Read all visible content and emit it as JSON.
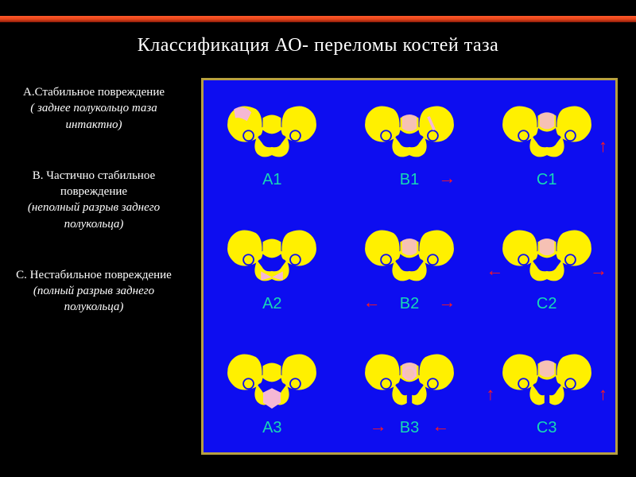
{
  "colors": {
    "background": "#000000",
    "accent_gradient_top": "#ff5a2c",
    "accent_gradient_bottom": "#8b1a0a",
    "diagram_bg": "#0d0df0",
    "diagram_border": "#b7a040",
    "pelvis_fill": "#fff000",
    "pelvis_highlight": "#f5b8d4",
    "arrow": "#ff1a1a",
    "label_a": "#17d7b5",
    "label_b": "#17d7b5",
    "label_c": "#17d7b5",
    "text": "#ffffff"
  },
  "title": "Классификация АО- переломы костей таза",
  "descriptions": [
    {
      "heading": "А.Стабильное повреждение",
      "sub": "( заднее полукольцо таза интактно)",
      "italic_heading": false
    },
    {
      "heading": "В. Частично стабильное повреждение",
      "sub": "(неполный разрыв заднего полукольца)",
      "italic_heading": false
    },
    {
      "heading": "С. Нестабильное повреждение",
      "sub": "(полный разрыв заднего полукольца)",
      "italic_heading": false
    }
  ],
  "grid": {
    "rows": 3,
    "cols": 3,
    "cells": [
      {
        "label": "A1",
        "label_color": "#17d7b5",
        "variant": "a1"
      },
      {
        "label": "B1",
        "label_color": "#17d7b5",
        "variant": "b1",
        "arrows": [
          {
            "glyph": "→",
            "pos": "br"
          }
        ]
      },
      {
        "label": "C1",
        "label_color": "#17d7b5",
        "variant": "c1",
        "arrows": [
          {
            "glyph": "↑",
            "pos": "r"
          }
        ]
      },
      {
        "label": "A2",
        "label_color": "#17d7b5",
        "variant": "a2"
      },
      {
        "label": "B2",
        "label_color": "#17d7b5",
        "variant": "b2",
        "arrows": [
          {
            "glyph": "←",
            "pos": "bl"
          },
          {
            "glyph": "→",
            "pos": "br"
          }
        ]
      },
      {
        "label": "C2",
        "label_color": "#17d7b5",
        "variant": "c2",
        "arrows": [
          {
            "glyph": "←",
            "pos": "l"
          },
          {
            "glyph": "→",
            "pos": "r"
          }
        ]
      },
      {
        "label": "A3",
        "label_color": "#17d7b5",
        "variant": "a3"
      },
      {
        "label": "B3",
        "label_color": "#17d7b5",
        "variant": "b3",
        "arrows": [
          {
            "glyph": "→",
            "pos": "bl2"
          },
          {
            "glyph": "←",
            "pos": "br2"
          }
        ]
      },
      {
        "label": "C3",
        "label_color": "#17d7b5",
        "variant": "c3",
        "arrows": [
          {
            "glyph": "↑",
            "pos": "l"
          },
          {
            "glyph": "↑",
            "pos": "r"
          }
        ]
      }
    ]
  },
  "typography": {
    "title_fontsize": 24,
    "desc_fontsize": 15,
    "label_fontsize": 20
  }
}
